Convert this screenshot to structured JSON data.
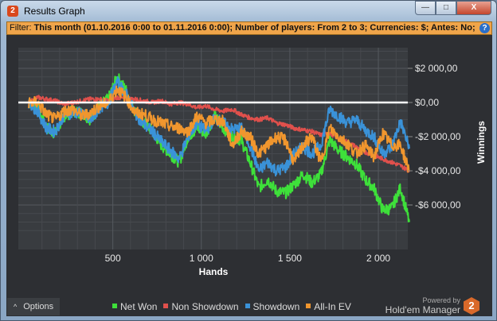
{
  "window": {
    "title": "Results Graph",
    "logo": "2",
    "buttons": {
      "minimize": "—",
      "maximize": "□",
      "close": "X"
    }
  },
  "filter": {
    "label": "Filter:",
    "text": "This month (01.10.2016 0:00 to 01.11.2016 0:00); Number of players: From 2 to 3; Currencies: $; Antes: No; Tournaments: No",
    "help": "?"
  },
  "options_label": "Options",
  "options_icon": "^",
  "powered_by": "Powered by",
  "brand": "Hold'em Manager",
  "brand_logo": "2",
  "chart_data": {
    "type": "line",
    "xlabel": "Hands",
    "ylabel": "Winnings",
    "xlim": [
      0,
      2200
    ],
    "ylim": [
      -7800,
      3100
    ],
    "xticks": [
      500,
      1000,
      1500,
      2000
    ],
    "xtick_labels": [
      "500",
      "1 000",
      "1 500",
      "2 000"
    ],
    "yticks": [
      2000,
      0,
      -2000,
      -4000,
      -6000
    ],
    "ytick_labels": [
      "$2 000,00",
      "$0,00",
      "-$2 000,00",
      "-$4 000,00",
      "-$6 000,00"
    ],
    "grid": true,
    "legend": "bottom",
    "x": [
      25,
      75,
      125,
      175,
      225,
      275,
      325,
      375,
      425,
      475,
      525,
      575,
      625,
      675,
      725,
      775,
      825,
      875,
      925,
      975,
      1025,
      1075,
      1125,
      1175,
      1225,
      1275,
      1325,
      1375,
      1425,
      1475,
      1525,
      1575,
      1625,
      1675,
      1725,
      1775,
      1825,
      1875,
      1925,
      1975,
      2025,
      2075,
      2125,
      2175
    ],
    "series": [
      {
        "name": "Net Won",
        "color": "#3ee03a",
        "values": [
          0,
          -300,
          -1500,
          -1800,
          -800,
          -500,
          -600,
          -1000,
          -200,
          200,
          1500,
          700,
          -500,
          -1200,
          -1700,
          -2500,
          -3000,
          -3500,
          -2000,
          -1500,
          -1800,
          -800,
          -1500,
          -2000,
          -2200,
          -3500,
          -5000,
          -4500,
          -5200,
          -5300,
          -4800,
          -4200,
          -4700,
          -4200,
          -2200,
          -2800,
          -3200,
          -3600,
          -4500,
          -5000,
          -6300,
          -6200,
          -5000,
          -7000
        ]
      },
      {
        "name": "Non Showdown",
        "color": "#e0504c",
        "values": [
          0,
          300,
          200,
          100,
          -100,
          0,
          100,
          200,
          200,
          100,
          300,
          200,
          200,
          100,
          0,
          100,
          -100,
          0,
          -100,
          -300,
          -200,
          -400,
          -500,
          -400,
          -700,
          -900,
          -1000,
          -900,
          -1200,
          -1300,
          -1500,
          -1600,
          -1700,
          -1900,
          -1800,
          -2100,
          -2300,
          -2600,
          -2900,
          -3100,
          -3300,
          -3500,
          -3700,
          -4000
        ]
      },
      {
        "name": "Showdown",
        "color": "#3a92d8",
        "values": [
          0,
          -500,
          -1500,
          -1700,
          -700,
          -600,
          -600,
          -1100,
          -300,
          0,
          1200,
          500,
          -600,
          -1300,
          -1700,
          -2300,
          -2800,
          -3300,
          -2000,
          -1200,
          -1700,
          -900,
          -1200,
          -1600,
          -1500,
          -2500,
          -4000,
          -3500,
          -4000,
          -3800,
          -3000,
          -2600,
          -3000,
          -2500,
          -400,
          -800,
          -1200,
          -1000,
          -1600,
          -2000,
          -3000,
          -2600,
          -1100,
          -2700
        ]
      },
      {
        "name": "All-In EV",
        "color": "#f0962e",
        "values": [
          0,
          0,
          -700,
          -1000,
          -500,
          -400,
          -800,
          -600,
          -200,
          0,
          800,
          300,
          -600,
          -700,
          -1000,
          -1200,
          -1400,
          -1500,
          -1700,
          -800,
          -1200,
          -1000,
          -1100,
          -2500,
          -1700,
          -2000,
          -3000,
          -2500,
          -2000,
          -2200,
          -3500,
          -2500,
          -2000,
          -3500,
          -1500,
          -2000,
          -2400,
          -3000,
          -2500,
          -3200,
          -1800,
          -2500,
          -2500,
          -4000
        ]
      }
    ]
  }
}
